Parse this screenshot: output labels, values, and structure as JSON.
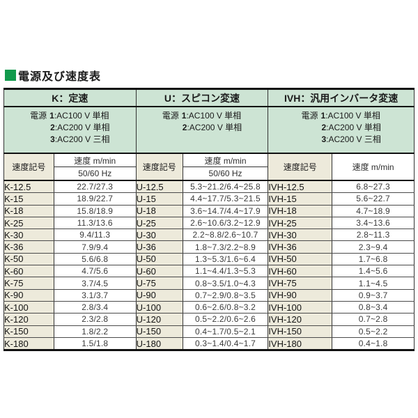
{
  "title": {
    "text": "電源及び速度表"
  },
  "colors": {
    "header_green": "#cde4d4",
    "code_beige": "#edeadb",
    "title_green": "#119a4c"
  },
  "sections": [
    {
      "id": "K",
      "title_code": "K",
      "title_rest": "：定速",
      "power_label": "電源",
      "power_lines": [
        {
          "num": "1",
          "text": ":AC100 V 単相"
        },
        {
          "num": "2",
          "text": ":AC200 V 単相"
        },
        {
          "num": "3",
          "text": ":AC200 V 三相"
        }
      ],
      "code_header": "速度記号",
      "speed_header": "速度 m/min",
      "freq_header": "50/60 Hz",
      "rows": [
        {
          "code": "K-12.5",
          "speed": "22.7/27.3"
        },
        {
          "code": "K-15",
          "speed": "18.9/22.7"
        },
        {
          "code": "K-18",
          "speed": "15.8/18.9"
        },
        {
          "code": "K-25",
          "speed": "11.3/13.6"
        },
        {
          "code": "K-30",
          "speed": "9.4/11.3"
        },
        {
          "code": "K-36",
          "speed": "7.9/9.4"
        },
        {
          "code": "K-50",
          "speed": "5.6/6.8"
        },
        {
          "code": "K-60",
          "speed": "4.7/5.6"
        },
        {
          "code": "K-75",
          "speed": "3.7/4.5"
        },
        {
          "code": "K-90",
          "speed": "3.1/3.7"
        },
        {
          "code": "K-100",
          "speed": "2.8/3.4"
        },
        {
          "code": "K-120",
          "speed": "2.3/2.8"
        },
        {
          "code": "K-150",
          "speed": "1.8/2.2"
        },
        {
          "code": "K-180",
          "speed": "1.5/1.8"
        }
      ]
    },
    {
      "id": "U",
      "title_code": "U",
      "title_rest": "：スピコン変速",
      "power_label": "電源",
      "power_lines": [
        {
          "num": "1",
          "text": ":AC100 V 単相"
        },
        {
          "num": "2",
          "text": ":AC200 V 単相"
        }
      ],
      "code_header": "速度記号",
      "speed_header": "速度 m/min",
      "freq_header": "50/60 Hz",
      "rows": [
        {
          "code": "U-12.5",
          "speed": "5.3~21.2/6.4~25.8"
        },
        {
          "code": "U-15",
          "speed": "4.4~17.7/5.3~21.5"
        },
        {
          "code": "U-18",
          "speed": "3.6~14.7/4.4~17.9"
        },
        {
          "code": "U-25",
          "speed": "2.6~10.6/3.2~12.9"
        },
        {
          "code": "U-30",
          "speed": "2.2~8.8/2.6~10.7"
        },
        {
          "code": "U-36",
          "speed": "1.8~7.3/2.2~8.9"
        },
        {
          "code": "U-50",
          "speed": "1.3~5.3/1.6~6.4"
        },
        {
          "code": "U-60",
          "speed": "1.1~4.4/1.3~5.3"
        },
        {
          "code": "U-75",
          "speed": "0.8~3.5/1.0~4.3"
        },
        {
          "code": "U-90",
          "speed": "0.7~2.9/0.8~3.5"
        },
        {
          "code": "U-100",
          "speed": "0.6~2.6/0.8~3.2"
        },
        {
          "code": "U-120",
          "speed": "0.5~2.2/0.6~2.6"
        },
        {
          "code": "U-150",
          "speed": "0.4~1.7/0.5~2.1"
        },
        {
          "code": "U-180",
          "speed": "0.3~1.4/0.4~1.7"
        }
      ]
    },
    {
      "id": "IVH",
      "title_code": "IVH",
      "title_rest": "：汎用インバータ変速",
      "power_label": "電源",
      "power_lines": [
        {
          "num": "1",
          "text": ":AC100 V 単相"
        },
        {
          "num": "2",
          "text": ":AC200 V 単相"
        },
        {
          "num": "3",
          "text": ":AC200 V 三相"
        }
      ],
      "code_header": "速度記号",
      "speed_header": "速度 m/min",
      "rows": [
        {
          "code": "IVH-12.5",
          "speed": "6.8~27.3"
        },
        {
          "code": "IVH-15",
          "speed": "5.6~22.7"
        },
        {
          "code": "IVH-18",
          "speed": "4.7~18.9"
        },
        {
          "code": "IVH-25",
          "speed": "3.4~13.6"
        },
        {
          "code": "IVH-30",
          "speed": "2.8~11.3"
        },
        {
          "code": "IVH-36",
          "speed": "2.3~9.4"
        },
        {
          "code": "IVH-50",
          "speed": "1.7~6.8"
        },
        {
          "code": "IVH-60",
          "speed": "1.4~5.6"
        },
        {
          "code": "IVH-75",
          "speed": "1.1~4.5"
        },
        {
          "code": "IVH-90",
          "speed": "0.9~3.7"
        },
        {
          "code": "IVH-100",
          "speed": "0.8~3.4"
        },
        {
          "code": "IVH-120",
          "speed": "0.7~2.8"
        },
        {
          "code": "IVH-150",
          "speed": "0.5~2.2"
        },
        {
          "code": "IVH-180",
          "speed": "0.4~1.8"
        }
      ]
    }
  ]
}
